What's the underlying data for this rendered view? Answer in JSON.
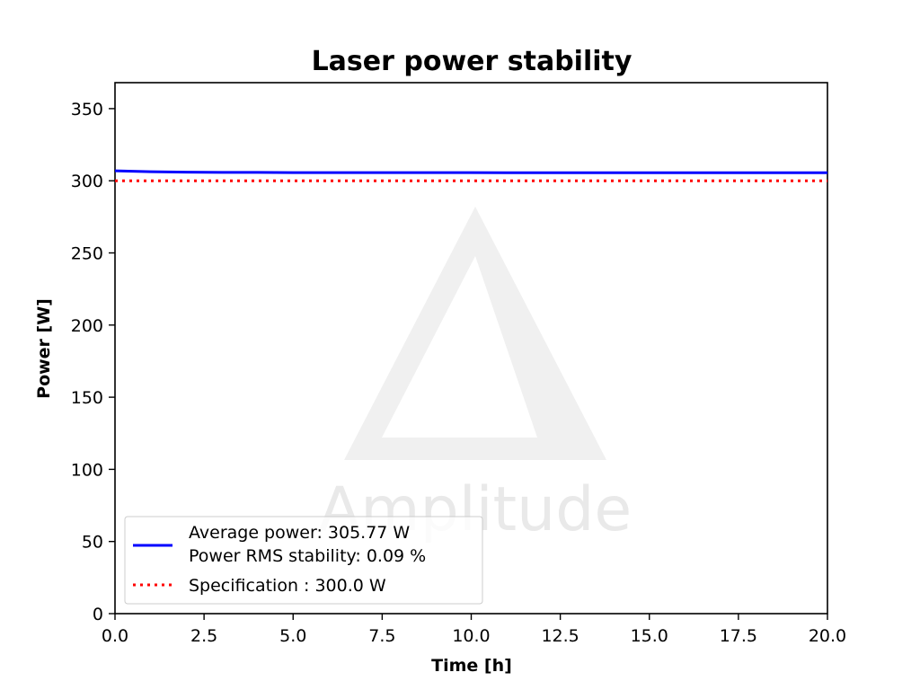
{
  "chart_data": {
    "type": "line",
    "title": "Laser power stability",
    "xlabel": "Time [h]",
    "ylabel": "Power [W]",
    "xlim": [
      0,
      20
    ],
    "ylim": [
      0,
      368
    ],
    "xticks": [
      "0.0",
      "2.5",
      "5.0",
      "7.5",
      "10.0",
      "12.5",
      "15.0",
      "17.5",
      "20.0"
    ],
    "yticks": [
      "0",
      "50",
      "100",
      "150",
      "200",
      "250",
      "300",
      "350"
    ],
    "grid": false,
    "legend_position": "lower-left",
    "watermark": "Amplitude",
    "series": [
      {
        "name": "Average power: 305.77 W",
        "name_line2": "Power RMS stability: 0.09 %",
        "color": "#0000ff",
        "style": "solid",
        "x": [
          0,
          0.5,
          1,
          1.5,
          2,
          2.5,
          3,
          4,
          5,
          6,
          7,
          8,
          9,
          10,
          11,
          12,
          13,
          14,
          15,
          16,
          17,
          18,
          19,
          20
        ],
        "y": [
          306.9,
          306.6,
          306.3,
          306.1,
          306.0,
          305.9,
          305.8,
          305.8,
          305.7,
          305.7,
          305.7,
          305.7,
          305.7,
          305.7,
          305.6,
          305.6,
          305.6,
          305.6,
          305.6,
          305.6,
          305.6,
          305.6,
          305.6,
          305.6
        ]
      },
      {
        "name": "Specification : 300.0 W",
        "color": "#ff0000",
        "style": "dotted",
        "x": [
          0,
          20
        ],
        "y": [
          300,
          300
        ]
      }
    ]
  }
}
